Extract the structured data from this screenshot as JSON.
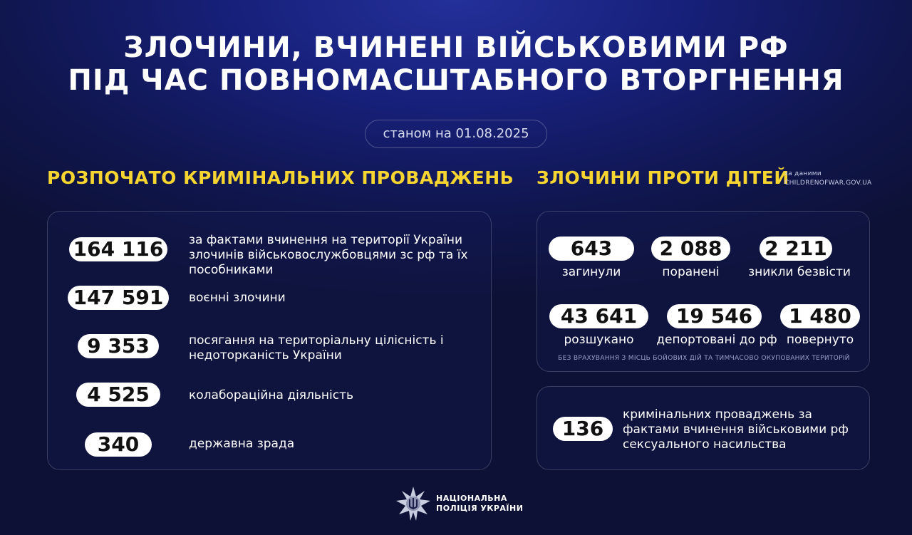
{
  "title": [
    "ЗЛОЧИНИ, ВЧИНЕНІ ВІЙСЬКОВИМИ РФ",
    "ПІД ЧАС ПОВНОМАСШТАБНОГО ВТОРГНЕННЯ"
  ],
  "date": "станом на 01.08.2025",
  "left": {
    "heading": "РОЗПОЧАТО КРИМІНАЛЬНИХ ПРОВАДЖЕНЬ",
    "items": [
      {
        "value": "164 116",
        "text": "за фактами вчинення на території України злочинів військовослужбовцями зс рф та їх пособниками"
      },
      {
        "value": "147 591",
        "text": "воєнні злочини"
      },
      {
        "value": "9 353",
        "text": "посягання на територіальну цілісність і недоторканість України"
      },
      {
        "value": "4 525",
        "text": "колабораційна діяльність"
      },
      {
        "value": "340",
        "text": "державна зрада"
      }
    ]
  },
  "right": {
    "heading": "ЗЛОЧИНИ ПРОТИ ДІТЕЙ",
    "source_line1": "за даними",
    "source_line2": "CHILDRENOFWAR.GOV.UA",
    "stats": [
      {
        "value": "643",
        "label": "загинули"
      },
      {
        "value": "2 088",
        "label": "поранені"
      },
      {
        "value": "2 211",
        "label": "зникли безвісти"
      },
      {
        "value": "43 641",
        "label": "розшукано"
      },
      {
        "value": "19 546",
        "label": "депортовані до рф"
      },
      {
        "value": "1 480",
        "label": "повернуто"
      }
    ],
    "note": "БЕЗ ВРАХУВАННЯ З МІСЦЬ БОЙОВИХ ДІЙ ТА ТИМЧАСОВО ОКУПОВАНИХ ТЕРИТОРІЙ",
    "sexual": {
      "value": "136",
      "text": "кримінальних проваджень за фактами вчинення військовими рф сексуального насильства"
    }
  },
  "footer": {
    "line1": "НАЦІОНАЛЬНА",
    "line2": "ПОЛІЦІЯ УКРАЇНИ",
    "logo_icon": "police-star-trident-icon"
  },
  "colors": {
    "accent": "#f6d531",
    "background": "#10164f"
  }
}
